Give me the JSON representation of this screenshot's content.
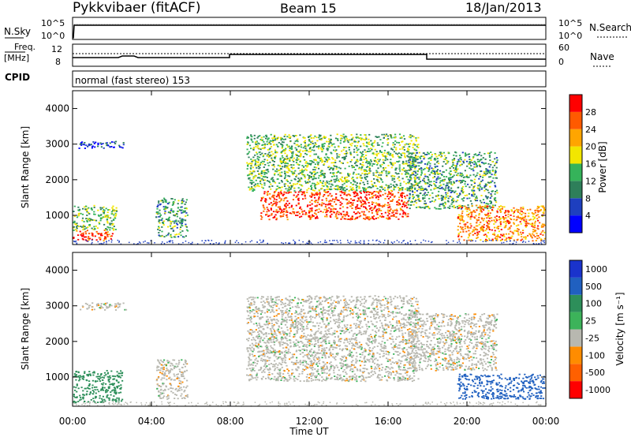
{
  "header": {
    "title": "Pykkvibaer (fitACF)",
    "beam": "Beam 15",
    "date": "18/Jan/2013"
  },
  "noise_panel": {
    "left_label": "N.Sky",
    "right_label": "N.Search",
    "left_ticks": [
      "10^5",
      "10^0"
    ],
    "right_ticks": [
      "10^5",
      "10^0"
    ]
  },
  "freq_panel": {
    "left_label_top": "Freq.",
    "left_label_bottom": "[MHz]",
    "right_label": "Nave",
    "left_ticks": [
      "12",
      "8"
    ],
    "right_ticks": [
      "60",
      "0"
    ]
  },
  "cpid": {
    "label": "CPID",
    "value": "normal (fast stereo) 153"
  },
  "power_panel": {
    "ylabel": "Slant Range [km]",
    "yticks": [
      "4000",
      "3000",
      "2000",
      "1000"
    ],
    "colorbar_label": "Power [dB]",
    "colorbar_ticks": [
      "28",
      "24",
      "20",
      "16",
      "12",
      "8",
      "4"
    ],
    "colors": [
      "#0000ff",
      "#1e3fbf",
      "#2e7f5a",
      "#35b35a",
      "#f2e600",
      "#ffa500",
      "#ff5a00",
      "#ff0000"
    ]
  },
  "velocity_panel": {
    "ylabel": "Slant Range [km]",
    "yticks": [
      "4000",
      "3000",
      "2000",
      "1000"
    ],
    "colorbar_label": "Velocity [m s⁻¹]",
    "colorbar_ticks": [
      "1000",
      "500",
      "100",
      "25",
      "-25",
      "-100",
      "-500",
      "-1000"
    ],
    "colors": [
      "#1a33cc",
      "#2060c0",
      "#2d8f5a",
      "#3cb35a",
      "#b8b8b0",
      "#ff8c00",
      "#ff6000",
      "#ff0000"
    ]
  },
  "xaxis": {
    "ticks": [
      "00:00",
      "04:00",
      "08:00",
      "12:00",
      "16:00",
      "20:00",
      "00:00"
    ],
    "label": "Time UT"
  },
  "chart_data": {
    "type": "heatmap",
    "x_range_hours": [
      0,
      24
    ],
    "y_range_km": [
      180,
      4500
    ],
    "power_regions": [
      {
        "t0": 0.0,
        "t1": 2.0,
        "r0": 300,
        "r1": 600,
        "power_db": 28
      },
      {
        "t0": 0.0,
        "t1": 2.2,
        "r0": 600,
        "r1": 1300,
        "power_db": 14
      },
      {
        "t0": 0.3,
        "t1": 2.7,
        "r0": 2900,
        "r1": 3100,
        "power_db": 6
      },
      {
        "t0": 4.2,
        "t1": 5.8,
        "r0": 400,
        "r1": 1500,
        "power_db": 12
      },
      {
        "t0": 9.5,
        "t1": 17.0,
        "r0": 900,
        "r1": 1700,
        "power_db": 28
      },
      {
        "t0": 8.8,
        "t1": 17.5,
        "r0": 1700,
        "r1": 3300,
        "power_db": 14
      },
      {
        "t0": 17.0,
        "t1": 21.5,
        "r0": 1200,
        "r1": 2800,
        "power_db": 12
      },
      {
        "t0": 19.5,
        "t1": 24.0,
        "r0": 300,
        "r1": 1300,
        "power_db": 24
      }
    ],
    "velocity_regions": [
      {
        "t0": 0.0,
        "t1": 2.5,
        "r0": 300,
        "r1": 1200,
        "velocity_ms": 150
      },
      {
        "t0": 0.3,
        "t1": 2.7,
        "r0": 2900,
        "r1": 3100,
        "velocity_ms": 0
      },
      {
        "t0": 4.2,
        "t1": 5.8,
        "r0": 400,
        "r1": 1500,
        "velocity_ms": 0
      },
      {
        "t0": 8.8,
        "t1": 17.5,
        "r0": 900,
        "r1": 3300,
        "velocity_ms": 0
      },
      {
        "t0": 17.0,
        "t1": 21.5,
        "r0": 1200,
        "r1": 2800,
        "velocity_ms": 0
      },
      {
        "t0": 19.5,
        "t1": 24.0,
        "r0": 400,
        "r1": 1100,
        "velocity_ms": 800
      }
    ]
  }
}
